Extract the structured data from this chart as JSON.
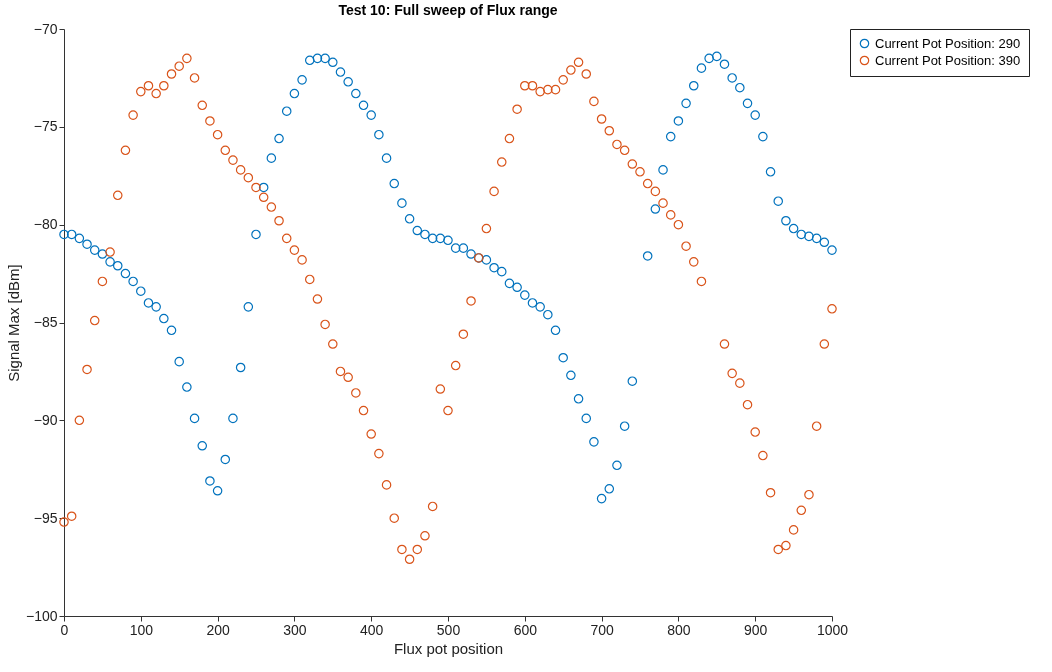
{
  "chart_data": {
    "type": "scatter",
    "title": "Test 10: Full sweep of Flux range",
    "xlabel": "Flux pot position",
    "ylabel": "Signal Max [dBm]",
    "x": [
      0,
      10,
      20,
      30,
      40,
      50,
      60,
      70,
      80,
      90,
      100,
      110,
      120,
      130,
      140,
      150,
      160,
      170,
      180,
      190,
      200,
      210,
      220,
      230,
      240,
      250,
      260,
      270,
      280,
      290,
      300,
      310,
      320,
      330,
      340,
      350,
      360,
      370,
      380,
      390,
      400,
      410,
      420,
      430,
      440,
      450,
      460,
      470,
      480,
      490,
      500,
      510,
      520,
      530,
      540,
      550,
      560,
      570,
      580,
      590,
      600,
      610,
      620,
      630,
      640,
      650,
      660,
      670,
      680,
      690,
      700,
      710,
      720,
      730,
      740,
      750,
      760,
      770,
      780,
      790,
      800,
      810,
      820,
      830,
      840,
      850,
      860,
      870,
      880,
      890,
      900,
      910,
      920,
      930,
      940,
      950,
      960,
      970,
      980,
      990,
      1000
    ],
    "series": [
      {
        "name": "Current Pot Position: 290",
        "color": "#0072bd",
        "values": [
          -80.5,
          -80.5,
          -80.7,
          -81.0,
          -81.3,
          -81.5,
          -81.9,
          -82.1,
          -82.5,
          -82.9,
          -83.4,
          -84.0,
          -84.2,
          -84.8,
          -85.4,
          -87.0,
          -88.3,
          -89.9,
          -91.3,
          -93.1,
          -93.6,
          -92.0,
          -89.9,
          -87.3,
          -84.2,
          -80.5,
          -78.1,
          -76.6,
          -75.6,
          -74.2,
          -73.3,
          -72.6,
          -71.6,
          -71.5,
          -71.5,
          -71.7,
          -72.2,
          -72.7,
          -73.3,
          -73.9,
          -74.4,
          -75.4,
          -76.6,
          -77.9,
          -78.9,
          -79.7,
          -80.3,
          -80.5,
          -80.7,
          -80.7,
          -80.8,
          -81.2,
          -81.2,
          -81.5,
          -81.7,
          -81.8,
          -82.2,
          -82.4,
          -83.0,
          -83.2,
          -83.6,
          -84.0,
          -84.2,
          -84.6,
          -85.4,
          -86.8,
          -87.7,
          -88.9,
          -89.9,
          -91.1,
          -94.0,
          -93.5,
          -92.3,
          -90.3,
          -88.0,
          null,
          -81.6,
          -79.2,
          -77.2,
          -75.5,
          -74.7,
          -73.8,
          -72.9,
          -72.0,
          -71.5,
          -71.4,
          -71.8,
          -72.5,
          -73.0,
          -73.8,
          -74.4,
          -75.5,
          -77.3,
          -78.8,
          -79.8,
          -80.2,
          -80.5,
          -80.6,
          -80.7,
          -80.9,
          -81.3
        ]
      },
      {
        "name": "Current Pot Position: 390",
        "color": "#d95319",
        "values": [
          -95.2,
          -94.9,
          -90.0,
          -87.4,
          -84.9,
          -82.9,
          -81.4,
          -78.5,
          -76.2,
          -74.4,
          -73.2,
          -72.9,
          -73.3,
          -72.9,
          -72.3,
          -71.9,
          -71.5,
          -72.5,
          -73.9,
          -74.7,
          -75.4,
          -76.2,
          -76.7,
          -77.2,
          -77.6,
          -78.1,
          -78.6,
          -79.1,
          -79.8,
          -80.7,
          -81.3,
          -81.8,
          -82.8,
          -83.8,
          -85.1,
          -86.1,
          -87.5,
          -87.8,
          -88.6,
          -89.5,
          -90.7,
          -91.7,
          -93.3,
          -95.0,
          -96.6,
          -97.1,
          -96.6,
          -95.9,
          -94.4,
          -88.4,
          -89.5,
          -87.2,
          -85.6,
          -83.9,
          -81.7,
          -80.2,
          -78.3,
          -76.8,
          -75.6,
          -74.1,
          -72.9,
          -72.9,
          -73.2,
          -73.1,
          -73.1,
          -72.6,
          -72.1,
          -71.7,
          -72.3,
          -73.7,
          -74.6,
          -75.2,
          -75.9,
          -76.2,
          -76.9,
          -77.3,
          -77.9,
          -78.3,
          -78.9,
          -79.5,
          -80.0,
          -81.1,
          -81.9,
          -82.9,
          null,
          null,
          -86.1,
          -87.6,
          -88.1,
          -89.2,
          -90.6,
          -91.8,
          -93.7,
          -96.6,
          -96.4,
          -95.6,
          -94.6,
          -93.8,
          -90.3,
          -86.1,
          -84.3
        ]
      }
    ],
    "xlim": [
      0,
      1000
    ],
    "xticks": [
      0,
      100,
      200,
      300,
      400,
      500,
      600,
      700,
      800,
      900,
      1000
    ],
    "ylim": [
      -100,
      -70
    ],
    "yticks": [
      -100,
      -95,
      -90,
      -85,
      -80,
      -75,
      -70
    ],
    "marker": "circle",
    "legend": "right",
    "grid": false
  }
}
